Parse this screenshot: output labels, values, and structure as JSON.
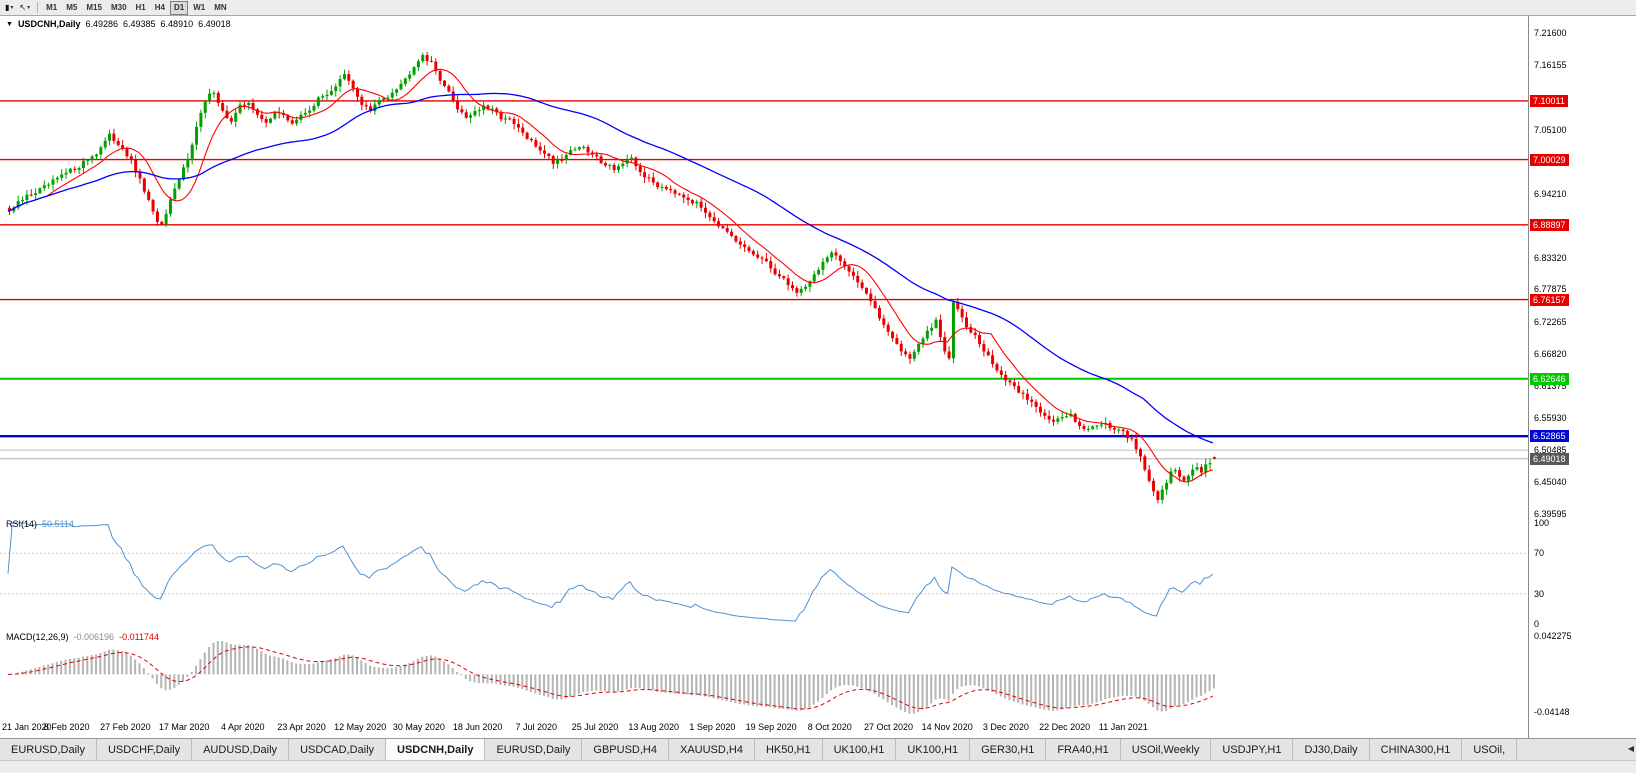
{
  "toolbar": {
    "dropdowns": [
      {
        "name": "chart-type",
        "icon": "▮"
      },
      {
        "name": "cursor-tool",
        "icon": "↖"
      }
    ],
    "caret": "▾",
    "timeframes": [
      "M1",
      "M5",
      "M15",
      "M30",
      "H1",
      "H4",
      "D1",
      "W1",
      "MN"
    ],
    "active_timeframe": "D1"
  },
  "main_chart": {
    "collapse_icon": "▼",
    "symbol": "USDCNH,Daily",
    "open": "6.49286",
    "high": "6.49385",
    "low": "6.48910",
    "close": "6.49018",
    "axis_labels": [
      "7.21600",
      "7.16155",
      "7.05100",
      "6.94210",
      "6.83320",
      "6.77875",
      "6.72265",
      "6.66820",
      "6.61375",
      "6.55930",
      "6.50485",
      "6.45040",
      "6.39595"
    ],
    "levels": [
      {
        "price": 7.10011,
        "label": "7.10011",
        "color": "#e60000",
        "width": 1.4
      },
      {
        "price": 7.00029,
        "label": "7.00029",
        "color": "#e60000",
        "width": 1.4
      },
      {
        "price": 6.88897,
        "label": "6.88897",
        "color": "#e60000",
        "width": 1.4
      },
      {
        "price": 6.76157,
        "label": "6.76157",
        "color": "#e60000",
        "width": 1.4
      },
      {
        "price": 6.62646,
        "label": "6.62646",
        "color": "#00c800",
        "width": 2
      },
      {
        "price": 6.52865,
        "label": "6.52865",
        "color": "#0008d0",
        "width": 2.4
      }
    ],
    "gray_line_price": 6.50485,
    "bid": {
      "price": 6.49018,
      "label": "6.49018",
      "badge_color": "#595959"
    },
    "scale": {
      "top": 7.216,
      "bottom": 6.39595
    },
    "colors": {
      "up": "#00a000",
      "down": "#e80000",
      "ma_fast": "#ff0000",
      "ma_slow": "#0000ff"
    }
  },
  "rsi_panel": {
    "title": "RSI(14)",
    "value": "50.5114",
    "line_color": "#4f92d2",
    "axis_labels": [
      {
        "v": 100,
        "label": "100"
      },
      {
        "v": 70,
        "label": "70"
      },
      {
        "v": 30,
        "label": "30"
      },
      {
        "v": 0,
        "label": "0"
      }
    ],
    "levels": [
      70,
      30
    ],
    "range": [
      0,
      100
    ]
  },
  "macd_panel": {
    "title": "MACD(12,26,9)",
    "value_main": "-0.006196",
    "value_signal": "-0.011744",
    "axis_top": "0.042275",
    "axis_bottom": "-0.04148",
    "range": [
      -0.0415,
      0.0423
    ],
    "colors": {
      "histogram": "#b4b4b4",
      "histogram_border": "#8c8c8c",
      "signal": "#e00000"
    }
  },
  "date_axis": {
    "labels": [
      "21 Jan 2020",
      "8 Feb 2020",
      "27 Feb 2020",
      "17 Mar 2020",
      "4 Apr 2020",
      "23 Apr 2020",
      "12 May 2020",
      "30 May 2020",
      "18 Jun 2020",
      "7 Jul 2020",
      "25 Jul 2020",
      "13 Aug 2020",
      "1 Sep 2020",
      "19 Sep 2020",
      "8 Oct 2020",
      "27 Oct 2020",
      "14 Nov 2020",
      "3 Dec 2020",
      "22 Dec 2020",
      "11 Jan 2021"
    ]
  },
  "tabs": {
    "items": [
      "EURUSD,Daily",
      "USDCHF,Daily",
      "AUDUSD,Daily",
      "USDCAD,Daily",
      "USDCNH,Daily",
      "EURUSD,Daily",
      "GBPUSD,H4",
      "XAUUSD,H4",
      "HK50,H1",
      "UK100,H1",
      "UK100,H1",
      "GER30,H1",
      "FRA40,H1",
      "USOil,Weekly",
      "USDJPY,H1",
      "DJ30,Daily",
      "CHINA300,H1",
      "USOil,"
    ],
    "active_index": 4,
    "scroll_icon": "◀"
  },
  "chart_data": {
    "type": "candlestick",
    "symbol": "USDCNH",
    "timeframe": "Daily",
    "title": "USDCNH,Daily",
    "num_candles": 278,
    "y_axis_range": [
      6.39595,
      7.216
    ],
    "horizontal_levels": [
      7.10011,
      7.00029,
      6.88897,
      6.76157,
      6.62646,
      6.52865
    ],
    "last_candle": {
      "o": 6.49286,
      "h": 6.49385,
      "l": 6.4891,
      "c": 6.49018
    },
    "indicators": [
      {
        "name": "MA fast",
        "type": "sma",
        "period": 10,
        "color": "#ff0000"
      },
      {
        "name": "MA slow",
        "type": "sma",
        "period": 45,
        "color": "#0000ff"
      },
      {
        "name": "RSI",
        "period": 14,
        "current": 50.5114
      },
      {
        "name": "MACD",
        "fast": 12,
        "slow": 26,
        "signal": 9,
        "current_macd": -0.006196,
        "current_signal": -0.011744
      }
    ],
    "price_path_anchors": [
      [
        0,
        6.912
      ],
      [
        4,
        6.938
      ],
      [
        8,
        6.952
      ],
      [
        12,
        6.972
      ],
      [
        16,
        6.99
      ],
      [
        20,
        7.012
      ],
      [
        23,
        7.04
      ],
      [
        26,
        7.022
      ],
      [
        28,
        6.995
      ],
      [
        31,
        6.948
      ],
      [
        33,
        6.908
      ],
      [
        35,
        6.886
      ],
      [
        37,
        6.928
      ],
      [
        39,
        6.965
      ],
      [
        41,
        7.005
      ],
      [
        43,
        7.055
      ],
      [
        45,
        7.1
      ],
      [
        47,
        7.118
      ],
      [
        49,
        7.082
      ],
      [
        51,
        7.064
      ],
      [
        53,
        7.09
      ],
      [
        55,
        7.1
      ],
      [
        57,
        7.074
      ],
      [
        59,
        7.062
      ],
      [
        61,
        7.084
      ],
      [
        63,
        7.073
      ],
      [
        65,
        7.063
      ],
      [
        67,
        7.074
      ],
      [
        69,
        7.087
      ],
      [
        71,
        7.102
      ],
      [
        73,
        7.113
      ],
      [
        75,
        7.126
      ],
      [
        77,
        7.144
      ],
      [
        79,
        7.12
      ],
      [
        81,
        7.096
      ],
      [
        83,
        7.083
      ],
      [
        85,
        7.1
      ],
      [
        87,
        7.11
      ],
      [
        89,
        7.124
      ],
      [
        91,
        7.137
      ],
      [
        93,
        7.162
      ],
      [
        95,
        7.18
      ],
      [
        97,
        7.163
      ],
      [
        99,
        7.139
      ],
      [
        101,
        7.113
      ],
      [
        103,
        7.089
      ],
      [
        105,
        7.073
      ],
      [
        107,
        7.083
      ],
      [
        109,
        7.089
      ],
      [
        111,
        7.083
      ],
      [
        113,
        7.073
      ],
      [
        115,
        7.066
      ],
      [
        117,
        7.053
      ],
      [
        119,
        7.036
      ],
      [
        121,
        7.023
      ],
      [
        123,
        7.013
      ],
      [
        125,
        6.996
      ],
      [
        127,
        7.003
      ],
      [
        129,
        7.016
      ],
      [
        131,
        7.023
      ],
      [
        133,
        7.013
      ],
      [
        135,
        7.003
      ],
      [
        137,
        6.993
      ],
      [
        139,
        6.986
      ],
      [
        141,
        6.993
      ],
      [
        143,
        6.999
      ],
      [
        145,
        6.979
      ],
      [
        147,
        6.966
      ],
      [
        149,
        6.956
      ],
      [
        151,
        6.953
      ],
      [
        153,
        6.946
      ],
      [
        155,
        6.939
      ],
      [
        157,
        6.929
      ],
      [
        159,
        6.919
      ],
      [
        161,
        6.906
      ],
      [
        163,
        6.889
      ],
      [
        165,
        6.873
      ],
      [
        167,
        6.859
      ],
      [
        169,
        6.849
      ],
      [
        171,
        6.839
      ],
      [
        173,
        6.829
      ],
      [
        175,
        6.816
      ],
      [
        177,
        6.801
      ],
      [
        179,
        6.789
      ],
      [
        181,
        6.773
      ],
      [
        183,
        6.786
      ],
      [
        185,
        6.803
      ],
      [
        187,
        6.826
      ],
      [
        189,
        6.839
      ],
      [
        191,
        6.826
      ],
      [
        193,
        6.813
      ],
      [
        195,
        6.793
      ],
      [
        197,
        6.773
      ],
      [
        199,
        6.743
      ],
      [
        201,
        6.719
      ],
      [
        203,
        6.699
      ],
      [
        205,
        6.673
      ],
      [
        207,
        6.663
      ],
      [
        209,
        6.683
      ],
      [
        211,
        6.706
      ],
      [
        213,
        6.723
      ],
      [
        215,
        6.673
      ],
      [
        216,
        6.659
      ],
      [
        217,
        6.756
      ],
      [
        218,
        6.749
      ],
      [
        220,
        6.719
      ],
      [
        222,
        6.699
      ],
      [
        224,
        6.673
      ],
      [
        226,
        6.653
      ],
      [
        228,
        6.633
      ],
      [
        230,
        6.616
      ],
      [
        232,
        6.606
      ],
      [
        234,
        6.593
      ],
      [
        236,
        6.579
      ],
      [
        238,
        6.566
      ],
      [
        240,
        6.553
      ],
      [
        242,
        6.559
      ],
      [
        244,
        6.566
      ],
      [
        246,
        6.549
      ],
      [
        248,
        6.539
      ],
      [
        250,
        6.549
      ],
      [
        252,
        6.553
      ],
      [
        254,
        6.539
      ],
      [
        256,
        6.533
      ],
      [
        258,
        6.523
      ],
      [
        260,
        6.496
      ],
      [
        261,
        6.473
      ],
      [
        262,
        6.449
      ],
      [
        263,
        6.433
      ],
      [
        264,
        6.421
      ],
      [
        265,
        6.439
      ],
      [
        266,
        6.453
      ],
      [
        267,
        6.466
      ],
      [
        268,
        6.473
      ],
      [
        269,
        6.459
      ],
      [
        270,
        6.449
      ],
      [
        271,
        6.459
      ],
      [
        272,
        6.473
      ],
      [
        273,
        6.479
      ],
      [
        274,
        6.469
      ],
      [
        275,
        6.479
      ],
      [
        276,
        6.487
      ],
      [
        277,
        6.49018
      ]
    ],
    "x_axis_dates": [
      "21 Jan 2020",
      "8 Feb 2020",
      "27 Feb 2020",
      "17 Mar 2020",
      "4 Apr 2020",
      "23 Apr 2020",
      "12 May 2020",
      "30 May 2020",
      "18 Jun 2020",
      "7 Jul 2020",
      "25 Jul 2020",
      "13 Aug 2020",
      "1 Sep 2020",
      "19 Sep 2020",
      "8 Oct 2020",
      "27 Oct 2020",
      "14 Nov 2020",
      "3 Dec 2020",
      "22 Dec 2020",
      "11 Jan 2021"
    ]
  }
}
